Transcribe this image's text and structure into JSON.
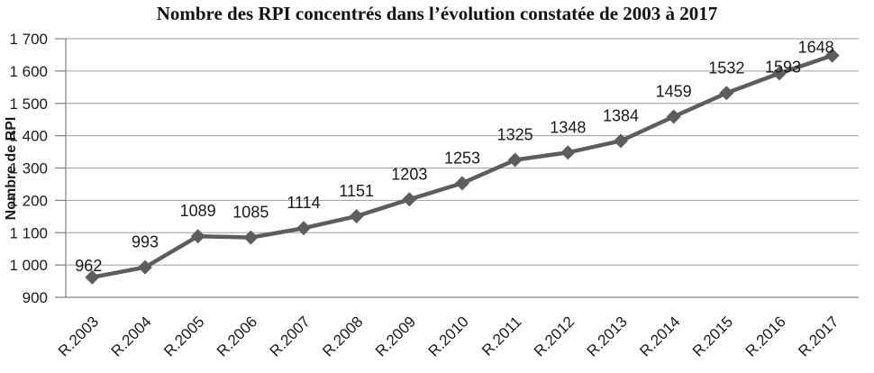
{
  "chart_data": {
    "type": "line",
    "title": "Nombre des RPI concentrés dans l’évolution constatée de 2003 à 2017",
    "ylabel": "Nombre de RPI",
    "xlabel": "",
    "categories": [
      "R.2003",
      "R.2004",
      "R.2005",
      "R.2006",
      "R.2007",
      "R.2008",
      "R.2009",
      "R.2010",
      "R.2011",
      "R.2012",
      "R.2013",
      "R.2014",
      "R.2015",
      "R.2016",
      "R.2017"
    ],
    "values": [
      962,
      993,
      1089,
      1085,
      1114,
      1151,
      1203,
      1253,
      1325,
      1348,
      1384,
      1459,
      1532,
      1593,
      1648
    ],
    "ylim": [
      900,
      1700
    ],
    "ytick_step": 100,
    "ytick_labels": [
      "900",
      "1 000",
      "1 100",
      "1 200",
      "1 300",
      "1 400",
      "1 500",
      "1 600",
      "1 700"
    ],
    "grid": true,
    "legend": "none",
    "marker": "diamond",
    "data_labels_shown": true,
    "colors": {
      "line": "#5d5d5d",
      "marker": "#5d5d5d",
      "gridline": "#9e9e9e",
      "axis": "#808080",
      "text": "#1a1a1a"
    }
  }
}
